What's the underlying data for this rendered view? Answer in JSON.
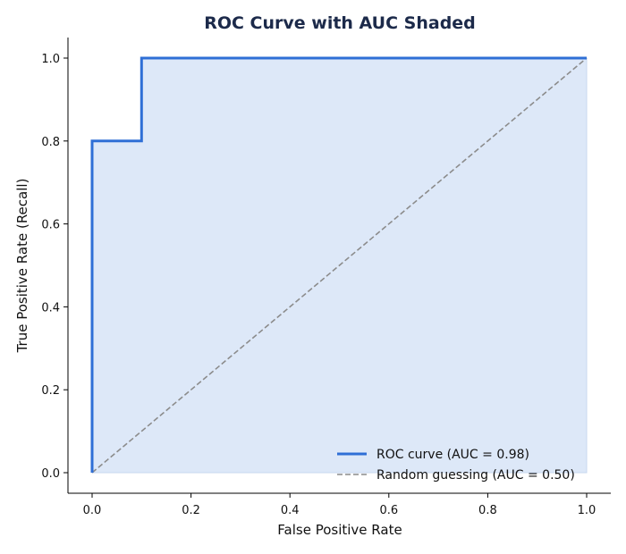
{
  "chart_data": {
    "type": "line",
    "title": "ROC Curve with AUC Shaded",
    "xlabel": "False Positive Rate",
    "ylabel": "True Positive Rate (Recall)",
    "xlim": [
      0,
      1
    ],
    "ylim": [
      0,
      1
    ],
    "xticks": [
      "0.0",
      "0.2",
      "0.4",
      "0.6",
      "0.8",
      "1.0"
    ],
    "yticks": [
      "0.0",
      "0.2",
      "0.4",
      "0.6",
      "0.8",
      "1.0"
    ],
    "grid": false,
    "legend_position": "bottom-right",
    "series": [
      {
        "name": "ROC curve (AUC = 0.98)",
        "style": "solid",
        "color": "#2f6fd6",
        "fill": "#dde8f8",
        "x": [
          0.0,
          0.0,
          0.1,
          0.1,
          1.0
        ],
        "y": [
          0.0,
          0.8,
          0.8,
          1.0,
          1.0
        ]
      },
      {
        "name": "Random guessing (AUC = 0.50)",
        "style": "dashed",
        "color": "#8c8c8c",
        "x": [
          0.0,
          1.0
        ],
        "y": [
          0.0,
          1.0
        ]
      }
    ]
  }
}
